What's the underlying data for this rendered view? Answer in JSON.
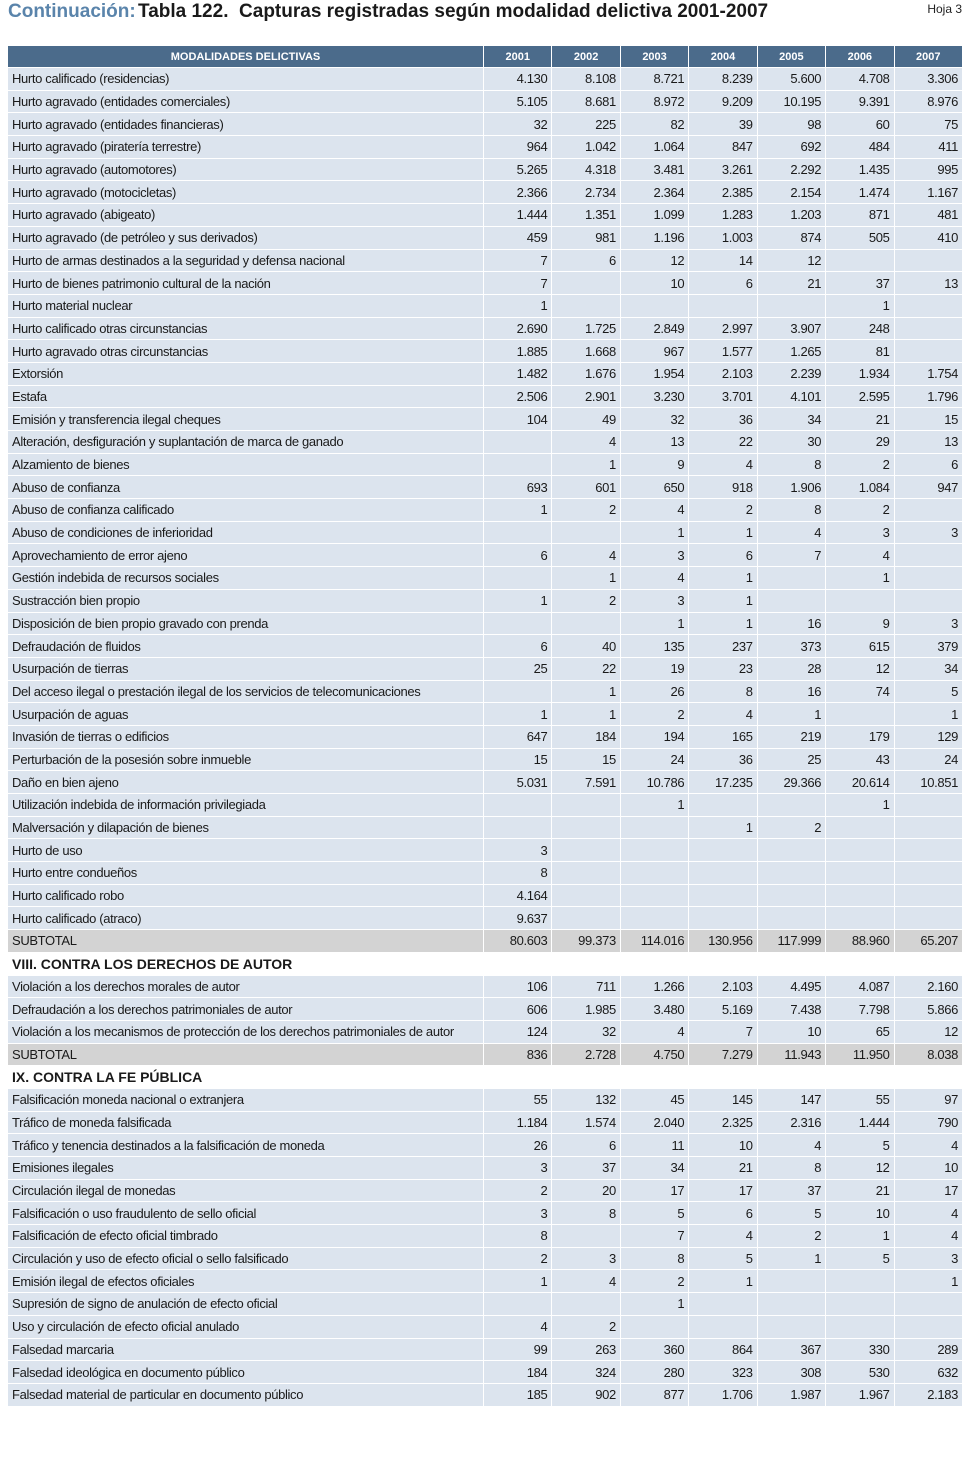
{
  "header": {
    "prefix": "Continuación:",
    "title": "Tabla 122.  Capturas registradas según modalidad delictiva 2001-2007",
    "page": "Hoja 3"
  },
  "table": {
    "columns": [
      "MODALIDADES DELICTIVAS",
      "2001",
      "2002",
      "2003",
      "2004",
      "2005",
      "2006",
      "2007"
    ],
    "blocks": [
      {
        "rows": [
          [
            "Hurto calificado (residencias)",
            "4.130",
            "8.108",
            "8.721",
            "8.239",
            "5.600",
            "4.708",
            "3.306"
          ],
          [
            "Hurto agravado (entidades comerciales)",
            "5.105",
            "8.681",
            "8.972",
            "9.209",
            "10.195",
            "9.391",
            "8.976"
          ],
          [
            "Hurto agravado (entidades financieras)",
            "32",
            "225",
            "82",
            "39",
            "98",
            "60",
            "75"
          ],
          [
            "Hurto agravado (piratería terrestre)",
            "964",
            "1.042",
            "1.064",
            "847",
            "692",
            "484",
            "411"
          ],
          [
            "Hurto agravado (automotores)",
            "5.265",
            "4.318",
            "3.481",
            "3.261",
            "2.292",
            "1.435",
            "995"
          ],
          [
            "Hurto agravado (motocicletas)",
            "2.366",
            "2.734",
            "2.364",
            "2.385",
            "2.154",
            "1.474",
            "1.167"
          ],
          [
            "Hurto agravado (abigeato)",
            "1.444",
            "1.351",
            "1.099",
            "1.283",
            "1.203",
            "871",
            "481"
          ],
          [
            "Hurto agravado (de petróleo y sus derivados)",
            "459",
            "981",
            "1.196",
            "1.003",
            "874",
            "505",
            "410"
          ],
          [
            "Hurto de armas destinados a la seguridad y defensa nacional",
            "7",
            "6",
            "12",
            "14",
            "12",
            null,
            null
          ],
          [
            "Hurto de bienes patrimonio cultural de la nación",
            "7",
            null,
            "10",
            "6",
            "21",
            "37",
            "13"
          ],
          [
            "Hurto material nuclear",
            "1",
            null,
            null,
            null,
            null,
            "1",
            null
          ],
          [
            "Hurto calificado otras circunstancias",
            "2.690",
            "1.725",
            "2.849",
            "2.997",
            "3.907",
            "248",
            null
          ],
          [
            "Hurto agravado otras circunstancias",
            "1.885",
            "1.668",
            "967",
            "1.577",
            "1.265",
            "81",
            null
          ],
          [
            "Extorsión",
            "1.482",
            "1.676",
            "1.954",
            "2.103",
            "2.239",
            "1.934",
            "1.754"
          ],
          [
            "Estafa",
            "2.506",
            "2.901",
            "3.230",
            "3.701",
            "4.101",
            "2.595",
            "1.796"
          ],
          [
            "Emisión y transferencia ilegal cheques",
            "104",
            "49",
            "32",
            "36",
            "34",
            "21",
            "15"
          ],
          [
            "Alteración, desfiguración y suplantación de marca de ganado",
            null,
            "4",
            "13",
            "22",
            "30",
            "29",
            "13"
          ],
          [
            "Alzamiento de bienes",
            null,
            "1",
            "9",
            "4",
            "8",
            "2",
            "6"
          ],
          [
            "Abuso de confianza",
            "693",
            "601",
            "650",
            "918",
            "1.906",
            "1.084",
            "947"
          ],
          [
            "Abuso de confianza calificado",
            "1",
            "2",
            "4",
            "2",
            "8",
            "2",
            null
          ],
          [
            "Abuso de condiciones de inferioridad",
            null,
            null,
            "1",
            "1",
            "4",
            "3",
            "3"
          ],
          [
            "Aprovechamiento de error ajeno",
            "6",
            "4",
            "3",
            "6",
            "7",
            "4",
            null
          ],
          [
            "Gestión indebida de recursos sociales",
            null,
            "1",
            "4",
            "1",
            null,
            "1",
            null
          ],
          [
            "Sustracción bien propio",
            "1",
            "2",
            "3",
            "1",
            null,
            null,
            null
          ],
          [
            "Disposición de bien propio gravado con prenda",
            null,
            null,
            "1",
            "1",
            "16",
            "9",
            "3"
          ],
          [
            "Defraudación de fluidos",
            "6",
            "40",
            "135",
            "237",
            "373",
            "615",
            "379"
          ],
          [
            "Usurpación de  tierras",
            "25",
            "22",
            "19",
            "23",
            "28",
            "12",
            "34"
          ],
          [
            "Del acceso ilegal o prestación ilegal de los servicios de telecomunicaciones",
            null,
            "1",
            "26",
            "8",
            "16",
            "74",
            "5"
          ],
          [
            "Usurpación de  aguas",
            "1",
            "1",
            "2",
            "4",
            "1",
            null,
            "1"
          ],
          [
            "Invasión de tierras o edificios",
            "647",
            "184",
            "194",
            "165",
            "219",
            "179",
            "129"
          ],
          [
            "Perturbación de la posesión  sobre inmueble",
            "15",
            "15",
            "24",
            "36",
            "25",
            "43",
            "24"
          ],
          [
            "Daño en bien ajeno",
            "5.031",
            "7.591",
            "10.786",
            "17.235",
            "29.366",
            "20.614",
            "10.851"
          ],
          [
            "Utilización indebida de información privilegiada",
            null,
            null,
            "1",
            null,
            null,
            "1",
            null
          ],
          [
            "Malversación y dilapación de bienes",
            null,
            null,
            null,
            "1",
            "2",
            null,
            null
          ],
          [
            "Hurto de uso",
            "3",
            null,
            null,
            null,
            null,
            null,
            null
          ],
          [
            "Hurto entre condueños",
            "8",
            null,
            null,
            null,
            null,
            null,
            null
          ],
          [
            "Hurto calificado robo",
            "4.164",
            null,
            null,
            null,
            null,
            null,
            null
          ],
          [
            "Hurto calificado (atraco)",
            "9.637",
            null,
            null,
            null,
            null,
            null,
            null
          ]
        ],
        "subtotal": [
          "SUBTOTAL",
          "80.603",
          "99.373",
          "114.016",
          "130.956",
          "117.999",
          "88.960",
          "65.207"
        ]
      },
      {
        "heading": "VIII. CONTRA LOS DERECHOS DE AUTOR",
        "rows": [
          [
            "Violación a los derechos morales de autor",
            "106",
            "711",
            "1.266",
            "2.103",
            "4.495",
            "4.087",
            "2.160"
          ],
          [
            "Defraudación a los derechos patrimoniales de autor",
            "606",
            "1.985",
            "3.480",
            "5.169",
            "7.438",
            "7.798",
            "5.866"
          ],
          [
            "Violación a los  mecanismos de protección de los derechos patrimoniales  de autor",
            "124",
            "32",
            "4",
            "7",
            "10",
            "65",
            "12"
          ]
        ],
        "subtotal": [
          "SUBTOTAL",
          "836",
          "2.728",
          "4.750",
          "7.279",
          "11.943",
          "11.950",
          "8.038"
        ]
      },
      {
        "heading": "IX. CONTRA LA FE PÚBLICA",
        "rows": [
          [
            "Falsificación moneda nacional o extranjera",
            "55",
            "132",
            "45",
            "145",
            "147",
            "55",
            "97"
          ],
          [
            "Tráfico de moneda falsificada",
            "1.184",
            "1.574",
            "2.040",
            "2.325",
            "2.316",
            "1.444",
            "790"
          ],
          [
            "Tráfico y tenencia destinados a la falsificación de moneda",
            "26",
            "6",
            "11",
            "10",
            "4",
            "5",
            "4"
          ],
          [
            "Emisiones ilegales",
            "3",
            "37",
            "34",
            "21",
            "8",
            "12",
            "10"
          ],
          [
            "Circulación ilegal de monedas",
            "2",
            "20",
            "17",
            "17",
            "37",
            "21",
            "17"
          ],
          [
            "Falsificación o uso fraudulento de sello oficial",
            "3",
            "8",
            "5",
            "6",
            "5",
            "10",
            "4"
          ],
          [
            "Falsificación de efecto oficial timbrado",
            "8",
            null,
            "7",
            "4",
            "2",
            "1",
            "4"
          ],
          [
            "Circulación y uso de efecto oficial o sello falsificado",
            "2",
            "3",
            "8",
            "5",
            "1",
            "5",
            "3"
          ],
          [
            "Emisión ilegal de efectos oficiales",
            "1",
            "4",
            "2",
            "1",
            null,
            null,
            "1"
          ],
          [
            "Supresión de signo de anulación de efecto oficial",
            null,
            null,
            "1",
            null,
            null,
            null,
            null
          ],
          [
            "Uso y circulación de efecto oficial anulado",
            "4",
            "2",
            null,
            null,
            null,
            null,
            null
          ],
          [
            "Falsedad marcaria",
            "99",
            "263",
            "360",
            "864",
            "367",
            "330",
            "289"
          ],
          [
            "Falsedad ideológica en documento público",
            "184",
            "324",
            "280",
            "323",
            "308",
            "530",
            "632"
          ],
          [
            "Falsedad material de particular en documento público",
            "185",
            "902",
            "877",
            "1.706",
            "1.987",
            "1.967",
            "2.183"
          ]
        ]
      }
    ]
  }
}
